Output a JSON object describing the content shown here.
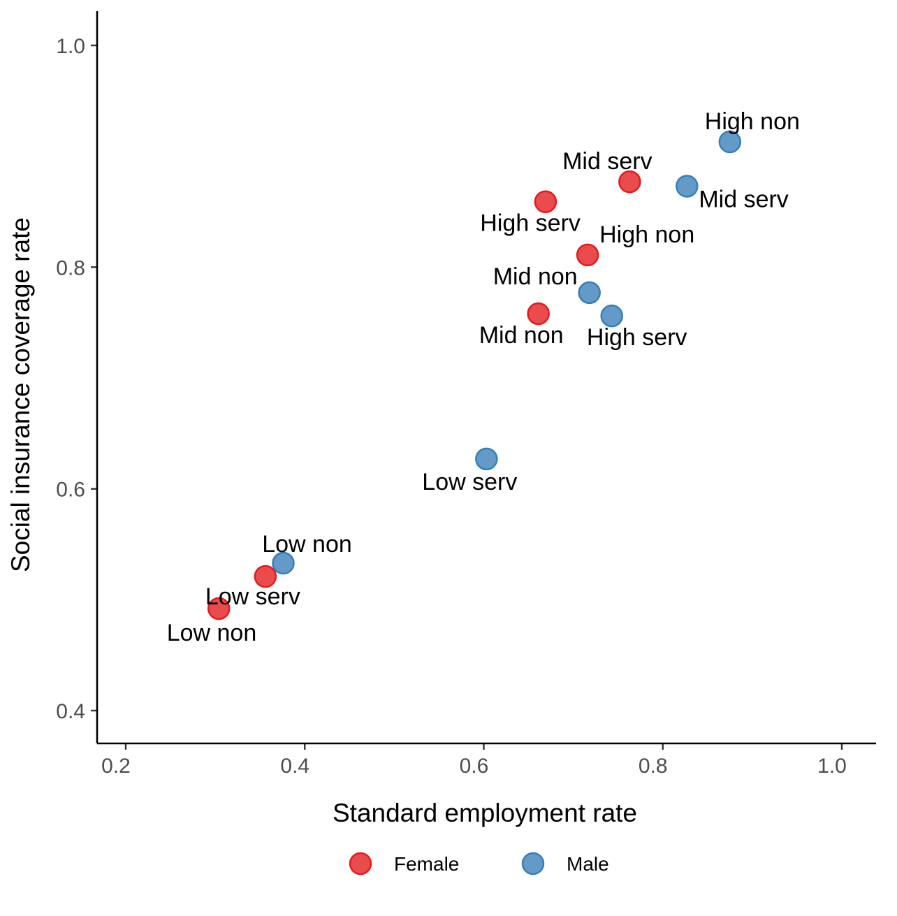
{
  "chart_data": {
    "type": "scatter",
    "xlabel": "Standard employment rate",
    "ylabel": "Social insurance coverage rate",
    "xlim": [
      0.17,
      1.05
    ],
    "ylim": [
      0.372,
      1.03
    ],
    "xticks": [
      0.2,
      0.4,
      0.6,
      0.8,
      1.0
    ],
    "yticks": [
      0.4,
      0.6,
      0.8,
      1.0
    ],
    "xtick_labels": [
      "0.2",
      "0.4",
      "0.6",
      "0.8",
      "1.0"
    ],
    "ytick_labels": [
      "0.4",
      "0.6",
      "0.8",
      "1.0"
    ],
    "grid": false,
    "legend_position": "bottom",
    "series": [
      {
        "name": "Female",
        "color": "#e41a1c",
        "points": [
          {
            "label": "Mid serv",
            "x": 0.763,
            "y": 0.877,
            "label_anchor": "above"
          },
          {
            "label": "High serv",
            "x": 0.669,
            "y": 0.859,
            "label_anchor": "below-left"
          },
          {
            "label": "High non",
            "x": 0.716,
            "y": 0.811,
            "label_anchor": "above-right"
          },
          {
            "label": "Mid non",
            "x": 0.661,
            "y": 0.758,
            "label_anchor": "below-left"
          },
          {
            "label": "Low serv",
            "x": 0.356,
            "y": 0.521,
            "label_anchor": "below-left"
          },
          {
            "label": "Low non",
            "x": 0.304,
            "y": 0.492,
            "label_anchor": "below-left"
          }
        ]
      },
      {
        "name": "Male",
        "color": "#377eb8",
        "points": [
          {
            "label": "High non",
            "x": 0.875,
            "y": 0.913,
            "label_anchor": "above"
          },
          {
            "label": "Mid serv",
            "x": 0.827,
            "y": 0.873,
            "label_anchor": "below-right"
          },
          {
            "label": "Mid non",
            "x": 0.718,
            "y": 0.777,
            "label_anchor": "above-left"
          },
          {
            "label": "High serv",
            "x": 0.743,
            "y": 0.756,
            "label_anchor": "below-right"
          },
          {
            "label": "Low serv",
            "x": 0.603,
            "y": 0.627,
            "label_anchor": "below-left"
          },
          {
            "label": "Low non",
            "x": 0.376,
            "y": 0.533,
            "label_anchor": "above-right"
          }
        ]
      }
    ]
  }
}
